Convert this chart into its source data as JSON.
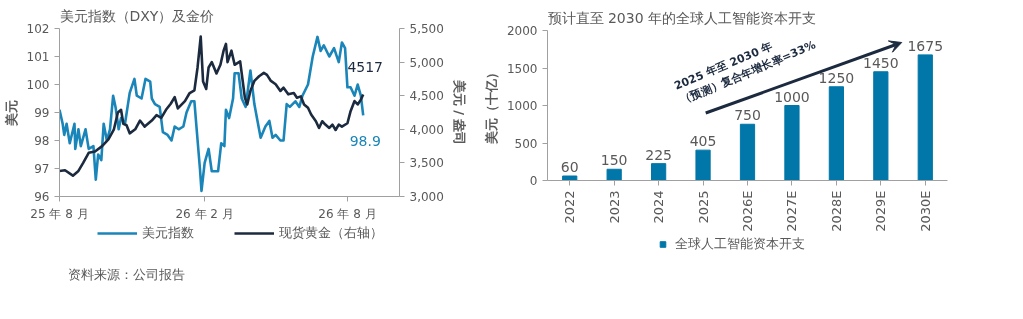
{
  "chart_data": [
    {
      "type": "line",
      "title": "美元指数（DXY）及金价",
      "ylabel": "美元",
      "y2label": "美元 / 盎司",
      "xlim": [
        "2025-08-01",
        "2026-10-06"
      ],
      "xticks": [
        {
          "value": "2025-08-01",
          "label": "25 年 8 月"
        },
        {
          "value": "2026-02-01",
          "label": "26 年 2 月"
        },
        {
          "value": "2026-08-01",
          "label": "26 年 8 月"
        }
      ],
      "ylim": [
        96,
        102
      ],
      "yticks": [
        96,
        97,
        98,
        99,
        100,
        101,
        102
      ],
      "y2lim": [
        3000,
        5500
      ],
      "y2ticks": [
        {
          "value": 3000,
          "label": "3,000"
        },
        {
          "value": 3500,
          "label": "3,500"
        },
        {
          "value": 4000,
          "label": "4,000"
        },
        {
          "value": 4500,
          "label": "4,500"
        },
        {
          "value": 5000,
          "label": "5,000"
        },
        {
          "value": 5500,
          "label": "5,500"
        }
      ],
      "legend": "bottom",
      "annotations": [
        "资料来源：公司报告"
      ],
      "series": [
        {
          "name": "美元指数",
          "color": "#1a85b8",
          "x": [
            "2025-08-01",
            "2025-08-05",
            "2025-08-07",
            "2025-08-10",
            "2025-08-14",
            "2025-08-20",
            "2025-08-21",
            "2025-08-25",
            "2025-08-28",
            "2025-09-03",
            "2025-09-07",
            "2025-09-13",
            "2025-09-16",
            "2025-09-19",
            "2025-09-23",
            "2025-09-26",
            "2025-09-30",
            "2025-10-04",
            "2025-10-08",
            "2025-10-11",
            "2025-10-15",
            "2025-10-18",
            "2025-10-23",
            "2025-10-29",
            "2025-11-04",
            "2025-11-07",
            "2025-11-13",
            "2025-11-18",
            "2025-11-24",
            "2025-11-26",
            "2025-11-30",
            "2025-12-06",
            "2025-12-10",
            "2025-12-16",
            "2025-12-21",
            "2025-12-25",
            "2025-12-30",
            "2026-01-05",
            "2026-01-09",
            "2026-01-15",
            "2026-01-19",
            "2026-01-21",
            "2026-01-26",
            "2026-01-28",
            "2026-02-01",
            "2026-02-06",
            "2026-02-10",
            "2026-02-18",
            "2026-02-22",
            "2026-02-26",
            "2026-02-28",
            "2026-03-04",
            "2026-03-09",
            "2026-03-11",
            "2026-03-16",
            "2026-03-20",
            "2026-03-25",
            "2026-03-31",
            "2026-04-05",
            "2026-04-09",
            "2026-04-13",
            "2026-04-19",
            "2026-04-24",
            "2026-04-28",
            "2026-05-02",
            "2026-05-08",
            "2026-05-12",
            "2026-05-16",
            "2026-05-20",
            "2026-05-27",
            "2026-06-01",
            "2026-06-05",
            "2026-06-12",
            "2026-06-18",
            "2026-06-24",
            "2026-06-28",
            "2026-07-02",
            "2026-07-09",
            "2026-07-15",
            "2026-07-21",
            "2026-07-25",
            "2026-07-29",
            "2026-08-01",
            "2026-08-05",
            "2026-08-10",
            "2026-08-14",
            "2026-08-18",
            "2026-08-21"
          ],
          "values": [
            99.1,
            98.6,
            98.2,
            98.6,
            97.9,
            98.6,
            97.7,
            98.4,
            97.8,
            98.4,
            97.7,
            97.8,
            96.6,
            97.5,
            97.3,
            98.6,
            98.0,
            98.4,
            99.6,
            99.2,
            98.4,
            98.8,
            98.6,
            99.7,
            100.2,
            99.6,
            99.5,
            100.2,
            100.1,
            99.5,
            99.3,
            99.2,
            98.3,
            98.2,
            98.0,
            98.5,
            98.4,
            98.5,
            99.0,
            99.4,
            99.4,
            98.7,
            97.0,
            96.2,
            97.2,
            97.7,
            96.9,
            96.9,
            97.9,
            97.8,
            99.1,
            98.8,
            99.5,
            100.4,
            100.4,
            99.5,
            99.2,
            100.5,
            99.3,
            98.7,
            98.1,
            98.5,
            98.7,
            98.1,
            98.2,
            98.0,
            98.0,
            99.3,
            99.2,
            99.4,
            99.2,
            99.6,
            100.0,
            101.0,
            101.7,
            101.2,
            101.4,
            101.0,
            101.3,
            100.8,
            101.5,
            101.3,
            99.9,
            99.9,
            99.6,
            100.0,
            99.6,
            98.9
          ],
          "value_labels": [
            null,
            null,
            null,
            null,
            null,
            null,
            null,
            null,
            null,
            null,
            null,
            null,
            null,
            null,
            null,
            null,
            null,
            null,
            null,
            null,
            null,
            null,
            null,
            null,
            null,
            null,
            null,
            null,
            null,
            null,
            null,
            null,
            null,
            null,
            null,
            null,
            null,
            null,
            null,
            null,
            null,
            null,
            null,
            null,
            null,
            null,
            null,
            null,
            null,
            null,
            null,
            null,
            null,
            null,
            null,
            null,
            null,
            null,
            null,
            null,
            null,
            null,
            null,
            null,
            null,
            null,
            null,
            null,
            null,
            null,
            null,
            null,
            null,
            null,
            null,
            null,
            null,
            null,
            null,
            null,
            null,
            null,
            null,
            null,
            null,
            null,
            null,
            "98.9"
          ]
        },
        {
          "name": "现货黄金（右轴）",
          "color": "#1c2a3f",
          "axis": "y2",
          "x": [
            "2025-08-01",
            "2025-08-08",
            "2025-08-18",
            "2025-08-25",
            "2025-08-31",
            "2025-09-07",
            "2025-09-15",
            "2025-09-24",
            "2025-10-02",
            "2025-10-09",
            "2025-10-14",
            "2025-10-18",
            "2025-10-21",
            "2025-10-25",
            "2025-10-29",
            "2025-11-05",
            "2025-11-11",
            "2025-11-17",
            "2025-11-26",
            "2025-12-02",
            "2025-12-08",
            "2025-12-14",
            "2025-12-20",
            "2025-12-25",
            "2025-12-29",
            "2026-01-07",
            "2026-01-13",
            "2026-01-19",
            "2026-01-23",
            "2026-01-27",
            "2026-01-30",
            "2026-02-03",
            "2026-02-06",
            "2026-02-10",
            "2026-02-16",
            "2026-02-21",
            "2026-02-25",
            "2026-02-28",
            "2026-03-02",
            "2026-03-07",
            "2026-03-11",
            "2026-03-18",
            "2026-03-24",
            "2026-03-27",
            "2026-03-31",
            "2026-04-05",
            "2026-04-11",
            "2026-04-17",
            "2026-04-21",
            "2026-04-26",
            "2026-05-02",
            "2026-05-08",
            "2026-05-12",
            "2026-05-18",
            "2026-05-25",
            "2026-05-29",
            "2026-06-03",
            "2026-06-07",
            "2026-06-12",
            "2026-06-16",
            "2026-06-22",
            "2026-06-26",
            "2026-06-30",
            "2026-07-04",
            "2026-07-09",
            "2026-07-13",
            "2026-07-17",
            "2026-07-21",
            "2026-07-25",
            "2026-08-01",
            "2026-08-05",
            "2026-08-10",
            "2026-08-14",
            "2026-08-18",
            "2026-08-21"
          ],
          "values": [
            3380,
            3390,
            3310,
            3380,
            3500,
            3650,
            3670,
            3750,
            3850,
            4000,
            4250,
            4290,
            4080,
            4060,
            3940,
            4000,
            4130,
            4040,
            4130,
            4210,
            4170,
            4290,
            4380,
            4480,
            4310,
            4420,
            4540,
            4580,
            4920,
            5380,
            4710,
            4600,
            4920,
            5000,
            4830,
            4960,
            5170,
            5270,
            5000,
            5170,
            4960,
            5010,
            4470,
            4370,
            4570,
            4720,
            4790,
            4840,
            4810,
            4720,
            4670,
            4570,
            4620,
            4520,
            4540,
            4470,
            4490,
            4370,
            4320,
            4220,
            4120,
            4020,
            4120,
            4070,
            4020,
            4070,
            3990,
            4070,
            4040,
            4090,
            4270,
            4420,
            4370,
            4440,
            4517
          ],
          "value_labels": [
            null,
            null,
            null,
            null,
            null,
            null,
            null,
            null,
            null,
            null,
            null,
            null,
            null,
            null,
            null,
            null,
            null,
            null,
            null,
            null,
            null,
            null,
            null,
            null,
            null,
            null,
            null,
            null,
            null,
            null,
            null,
            null,
            null,
            null,
            null,
            null,
            null,
            null,
            null,
            null,
            null,
            null,
            null,
            null,
            null,
            null,
            null,
            null,
            null,
            null,
            null,
            null,
            null,
            null,
            null,
            null,
            null,
            null,
            null,
            null,
            null,
            null,
            null,
            null,
            null,
            null,
            null,
            null,
            null,
            null,
            null,
            null,
            null,
            null,
            "4517"
          ]
        }
      ]
    },
    {
      "type": "bar",
      "title": "预计直至 2030 年的全球人工智能资本开支",
      "ylabel": "美元（十亿）",
      "categories": [
        "2022",
        "2023",
        "2024",
        "2025",
        "2026E",
        "2027E",
        "2028E",
        "2029E",
        "2030E"
      ],
      "ylim": [
        0,
        2000
      ],
      "yticks": [
        0,
        500,
        1000,
        1500,
        2000
      ],
      "legend": "bottom",
      "data_labels": true,
      "annotations": [
        "2025 年至 2030 年（预测）复合年增长率=33%"
      ],
      "series": [
        {
          "name": "全球人工智能资本开支",
          "color": "#0077a8",
          "values": [
            60,
            150,
            225,
            405,
            750,
            1000,
            1250,
            1450,
            1675
          ]
        }
      ]
    }
  ]
}
